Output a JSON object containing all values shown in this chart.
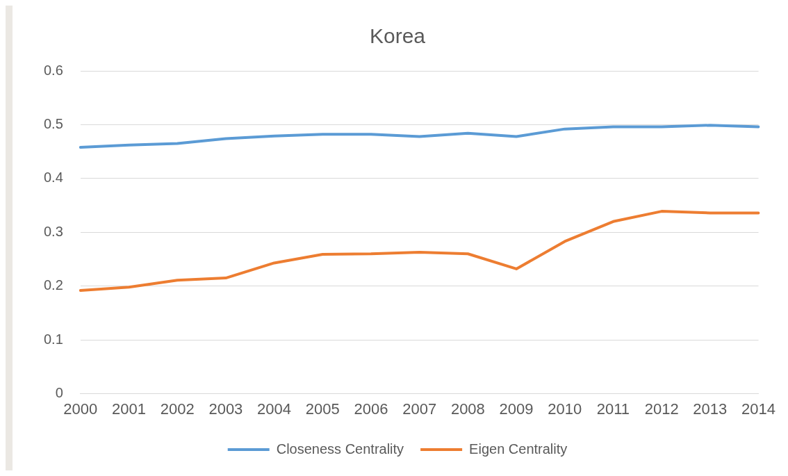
{
  "chart_data": {
    "type": "line",
    "title": "Korea",
    "categories": [
      "2000",
      "2001",
      "2002",
      "2003",
      "2004",
      "2005",
      "2006",
      "2007",
      "2008",
      "2009",
      "2010",
      "2011",
      "2012",
      "2013",
      "2014"
    ],
    "series": [
      {
        "name": "Closeness Centrality",
        "color": "#5b9bd5",
        "values": [
          0.458,
          0.462,
          0.465,
          0.474,
          0.479,
          0.482,
          0.482,
          0.478,
          0.484,
          0.478,
          0.492,
          0.496,
          0.496,
          0.499,
          0.496
        ]
      },
      {
        "name": "Eigen Centrality",
        "color": "#ed7d31",
        "values": [
          0.192,
          0.198,
          0.211,
          0.215,
          0.243,
          0.259,
          0.26,
          0.263,
          0.26,
          0.232,
          0.283,
          0.32,
          0.339,
          0.336,
          0.336
        ]
      }
    ],
    "ylim": [
      0,
      0.6
    ],
    "yticks": [
      0,
      0.1,
      0.2,
      0.3,
      0.4,
      0.5,
      0.6
    ],
    "grid": "y",
    "legend": "bottom",
    "marker": "none",
    "line_style": "solid"
  }
}
